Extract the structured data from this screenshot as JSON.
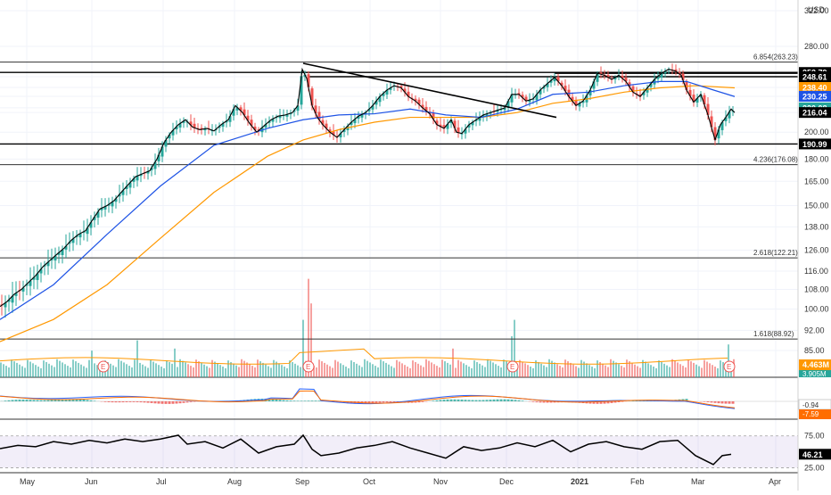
{
  "chart_data": {
    "type": "candlestick",
    "currency": "USD",
    "price_axis": {
      "scale": "log",
      "range": [
        86,
        325
      ],
      "ticks": [
        "322.00",
        "280.00",
        "252.79",
        "248.61",
        "238.40",
        "230.25",
        "220.08",
        "216.04",
        "200.00",
        "190.99",
        "180.00",
        "165.00",
        "150.00",
        "138.00",
        "126.00",
        "116.00",
        "108.00",
        "100.00",
        "92.00",
        "85.00"
      ],
      "tick_values": [
        322,
        280,
        252.79,
        248.61,
        238.4,
        230.25,
        220.08,
        216.04,
        200,
        190.99,
        180,
        165,
        150,
        138,
        126,
        116,
        108,
        100,
        92,
        85
      ],
      "tags": [
        {
          "label": "252.79",
          "value": 252.79,
          "bg": "#000000",
          "fg": "#ffffff"
        },
        {
          "label": "248.61",
          "value": 248.61,
          "bg": "#000000",
          "fg": "#ffffff"
        },
        {
          "label": "238.40",
          "value": 238.4,
          "bg": "#ff9800",
          "fg": "#ffffff"
        },
        {
          "label": "230.25",
          "value": 230.25,
          "bg": "#1e53e5",
          "fg": "#ffffff"
        },
        {
          "label": "220.08",
          "value": 220.08,
          "bg": "#26a69a",
          "fg": "#ffffff"
        },
        {
          "label": "216.04",
          "value": 216.04,
          "bg": "#000000",
          "fg": "#ffffff"
        },
        {
          "label": "190.99",
          "value": 190.99,
          "bg": "#000000",
          "fg": "#ffffff"
        }
      ]
    },
    "x_axis": {
      "labels": [
        "May",
        "Jun",
        "Jul",
        "Aug",
        "Sep",
        "Oct",
        "Nov",
        "Dec",
        "2021",
        "Feb",
        "Mar",
        "Apr"
      ],
      "positions": [
        30,
        103,
        183,
        263,
        339,
        415,
        494,
        568,
        648,
        715,
        783,
        870
      ]
    },
    "fib_levels": [
      {
        "label": "6.854(263.23)",
        "value": 263.23
      },
      {
        "label": "4.236(176.08)",
        "value": 176.08
      },
      {
        "label": "2.618(122.21)",
        "value": 122.21
      },
      {
        "label": "1.618(88.92)",
        "value": 88.92
      }
    ],
    "horizontal_levels": [
      252.79,
      190.99
    ],
    "resistance_segments": [
      {
        "x1": 345,
        "x2": 895,
        "value": 248.61
      },
      {
        "x1": 622,
        "x2": 895,
        "value": 252.0
      }
    ],
    "trendline": {
      "x1": 340,
      "y1": 262,
      "x2": 624,
      "y2": 212
    },
    "close_series": [
      {
        "x": 0,
        "y": 101
      },
      {
        "x": 8,
        "y": 103
      },
      {
        "x": 16,
        "y": 106
      },
      {
        "x": 24,
        "y": 108
      },
      {
        "x": 32,
        "y": 111
      },
      {
        "x": 40,
        "y": 114
      },
      {
        "x": 48,
        "y": 118
      },
      {
        "x": 56,
        "y": 121
      },
      {
        "x": 64,
        "y": 124
      },
      {
        "x": 72,
        "y": 127
      },
      {
        "x": 80,
        "y": 131
      },
      {
        "x": 88,
        "y": 134
      },
      {
        "x": 96,
        "y": 136
      },
      {
        "x": 104,
        "y": 142
      },
      {
        "x": 112,
        "y": 148
      },
      {
        "x": 120,
        "y": 150
      },
      {
        "x": 128,
        "y": 153
      },
      {
        "x": 136,
        "y": 158
      },
      {
        "x": 144,
        "y": 163
      },
      {
        "x": 152,
        "y": 168
      },
      {
        "x": 160,
        "y": 170
      },
      {
        "x": 168,
        "y": 172
      },
      {
        "x": 176,
        "y": 180
      },
      {
        "x": 184,
        "y": 192
      },
      {
        "x": 192,
        "y": 200
      },
      {
        "x": 200,
        "y": 206
      },
      {
        "x": 208,
        "y": 210
      },
      {
        "x": 216,
        "y": 204
      },
      {
        "x": 224,
        "y": 202
      },
      {
        "x": 232,
        "y": 203
      },
      {
        "x": 240,
        "y": 201
      },
      {
        "x": 248,
        "y": 206
      },
      {
        "x": 256,
        "y": 210
      },
      {
        "x": 264,
        "y": 222
      },
      {
        "x": 272,
        "y": 216
      },
      {
        "x": 280,
        "y": 207
      },
      {
        "x": 288,
        "y": 200
      },
      {
        "x": 296,
        "y": 205
      },
      {
        "x": 304,
        "y": 210
      },
      {
        "x": 312,
        "y": 213
      },
      {
        "x": 320,
        "y": 214
      },
      {
        "x": 328,
        "y": 216
      },
      {
        "x": 334,
        "y": 222
      },
      {
        "x": 339,
        "y": 256
      },
      {
        "x": 344,
        "y": 247
      },
      {
        "x": 350,
        "y": 222
      },
      {
        "x": 356,
        "y": 212
      },
      {
        "x": 362,
        "y": 206
      },
      {
        "x": 370,
        "y": 200
      },
      {
        "x": 378,
        "y": 196
      },
      {
        "x": 386,
        "y": 202
      },
      {
        "x": 394,
        "y": 208
      },
      {
        "x": 402,
        "y": 213
      },
      {
        "x": 410,
        "y": 216
      },
      {
        "x": 418,
        "y": 222
      },
      {
        "x": 426,
        "y": 230
      },
      {
        "x": 434,
        "y": 236
      },
      {
        "x": 442,
        "y": 240
      },
      {
        "x": 450,
        "y": 238
      },
      {
        "x": 458,
        "y": 230
      },
      {
        "x": 466,
        "y": 226
      },
      {
        "x": 474,
        "y": 220
      },
      {
        "x": 482,
        "y": 215
      },
      {
        "x": 490,
        "y": 206
      },
      {
        "x": 498,
        "y": 203
      },
      {
        "x": 506,
        "y": 210
      },
      {
        "x": 512,
        "y": 200
      },
      {
        "x": 518,
        "y": 199
      },
      {
        "x": 526,
        "y": 206
      },
      {
        "x": 534,
        "y": 210
      },
      {
        "x": 542,
        "y": 214
      },
      {
        "x": 550,
        "y": 216
      },
      {
        "x": 558,
        "y": 218
      },
      {
        "x": 566,
        "y": 220
      },
      {
        "x": 574,
        "y": 232
      },
      {
        "x": 582,
        "y": 232
      },
      {
        "x": 590,
        "y": 226
      },
      {
        "x": 598,
        "y": 228
      },
      {
        "x": 606,
        "y": 236
      },
      {
        "x": 614,
        "y": 242
      },
      {
        "x": 622,
        "y": 248
      },
      {
        "x": 630,
        "y": 240
      },
      {
        "x": 638,
        "y": 230
      },
      {
        "x": 646,
        "y": 222
      },
      {
        "x": 654,
        "y": 226
      },
      {
        "x": 662,
        "y": 236
      },
      {
        "x": 670,
        "y": 252
      },
      {
        "x": 678,
        "y": 250
      },
      {
        "x": 686,
        "y": 246
      },
      {
        "x": 694,
        "y": 250
      },
      {
        "x": 702,
        "y": 244
      },
      {
        "x": 710,
        "y": 234
      },
      {
        "x": 718,
        "y": 230
      },
      {
        "x": 726,
        "y": 238
      },
      {
        "x": 734,
        "y": 246
      },
      {
        "x": 742,
        "y": 252
      },
      {
        "x": 750,
        "y": 256
      },
      {
        "x": 758,
        "y": 254
      },
      {
        "x": 764,
        "y": 250
      },
      {
        "x": 770,
        "y": 236
      },
      {
        "x": 778,
        "y": 225
      },
      {
        "x": 786,
        "y": 232
      },
      {
        "x": 794,
        "y": 214
      },
      {
        "x": 802,
        "y": 194
      },
      {
        "x": 808,
        "y": 206
      },
      {
        "x": 814,
        "y": 212
      },
      {
        "x": 820,
        "y": 219
      },
      {
        "x": 824,
        "y": 216
      }
    ],
    "ema_fast": {
      "name": "",
      "color": "#1e53e5",
      "points": [
        {
          "x": 0,
          "y": 96
        },
        {
          "x": 60,
          "y": 110
        },
        {
          "x": 120,
          "y": 134
        },
        {
          "x": 180,
          "y": 162
        },
        {
          "x": 240,
          "y": 190
        },
        {
          "x": 300,
          "y": 203
        },
        {
          "x": 340,
          "y": 210
        },
        {
          "x": 380,
          "y": 214
        },
        {
          "x": 420,
          "y": 215
        },
        {
          "x": 460,
          "y": 219
        },
        {
          "x": 500,
          "y": 214
        },
        {
          "x": 540,
          "y": 212
        },
        {
          "x": 580,
          "y": 219
        },
        {
          "x": 620,
          "y": 232
        },
        {
          "x": 660,
          "y": 234
        },
        {
          "x": 700,
          "y": 240
        },
        {
          "x": 740,
          "y": 244
        },
        {
          "x": 770,
          "y": 244
        },
        {
          "x": 800,
          "y": 236
        },
        {
          "x": 824,
          "y": 230
        }
      ]
    },
    "ema_slow": {
      "name": "",
      "color": "#ff9800",
      "points": [
        {
          "x": 0,
          "y": 88
        },
        {
          "x": 60,
          "y": 96
        },
        {
          "x": 120,
          "y": 110
        },
        {
          "x": 180,
          "y": 132
        },
        {
          "x": 240,
          "y": 158
        },
        {
          "x": 300,
          "y": 182
        },
        {
          "x": 340,
          "y": 194
        },
        {
          "x": 380,
          "y": 202
        },
        {
          "x": 420,
          "y": 208
        },
        {
          "x": 460,
          "y": 212
        },
        {
          "x": 500,
          "y": 212
        },
        {
          "x": 540,
          "y": 212
        },
        {
          "x": 580,
          "y": 216
        },
        {
          "x": 620,
          "y": 224
        },
        {
          "x": 660,
          "y": 228
        },
        {
          "x": 700,
          "y": 234
        },
        {
          "x": 740,
          "y": 238
        },
        {
          "x": 780,
          "y": 240
        },
        {
          "x": 824,
          "y": 238
        }
      ]
    },
    "volume": {
      "labels": [
        "4.463M",
        "3.905M"
      ],
      "earnings_markers": [
        {
          "x": 116,
          "label": "E"
        },
        {
          "x": 346,
          "label": "E"
        },
        {
          "x": 575,
          "label": "E"
        },
        {
          "x": 818,
          "label": "E"
        }
      ],
      "spikes": [
        {
          "x": 103,
          "m": 6.5
        },
        {
          "x": 153,
          "m": 9
        },
        {
          "x": 197,
          "m": 7
        },
        {
          "x": 340,
          "m": 14
        },
        {
          "x": 345,
          "m": 24
        },
        {
          "x": 350,
          "m": 18
        },
        {
          "x": 508,
          "m": 7
        },
        {
          "x": 573,
          "m": 10
        },
        {
          "x": 578,
          "m": 14
        },
        {
          "x": 818,
          "m": 8
        }
      ]
    },
    "macd": {
      "labels": [
        "-0.94",
        "-7.59"
      ]
    },
    "rsi": {
      "value_label": "46.21",
      "ticks": [
        "75.00",
        "25.00"
      ],
      "points": [
        {
          "x": 0,
          "y": 55
        },
        {
          "x": 20,
          "y": 60
        },
        {
          "x": 40,
          "y": 58
        },
        {
          "x": 60,
          "y": 66
        },
        {
          "x": 80,
          "y": 62
        },
        {
          "x": 100,
          "y": 68
        },
        {
          "x": 120,
          "y": 64
        },
        {
          "x": 140,
          "y": 70
        },
        {
          "x": 160,
          "y": 66
        },
        {
          "x": 180,
          "y": 70
        },
        {
          "x": 200,
          "y": 76
        },
        {
          "x": 210,
          "y": 62
        },
        {
          "x": 230,
          "y": 66
        },
        {
          "x": 250,
          "y": 56
        },
        {
          "x": 270,
          "y": 70
        },
        {
          "x": 290,
          "y": 48
        },
        {
          "x": 310,
          "y": 58
        },
        {
          "x": 330,
          "y": 62
        },
        {
          "x": 340,
          "y": 76
        },
        {
          "x": 350,
          "y": 54
        },
        {
          "x": 360,
          "y": 44
        },
        {
          "x": 380,
          "y": 48
        },
        {
          "x": 400,
          "y": 56
        },
        {
          "x": 420,
          "y": 60
        },
        {
          "x": 440,
          "y": 66
        },
        {
          "x": 460,
          "y": 56
        },
        {
          "x": 480,
          "y": 48
        },
        {
          "x": 500,
          "y": 40
        },
        {
          "x": 520,
          "y": 58
        },
        {
          "x": 540,
          "y": 52
        },
        {
          "x": 560,
          "y": 56
        },
        {
          "x": 580,
          "y": 64
        },
        {
          "x": 600,
          "y": 58
        },
        {
          "x": 620,
          "y": 68
        },
        {
          "x": 640,
          "y": 50
        },
        {
          "x": 660,
          "y": 62
        },
        {
          "x": 680,
          "y": 66
        },
        {
          "x": 700,
          "y": 58
        },
        {
          "x": 720,
          "y": 54
        },
        {
          "x": 740,
          "y": 66
        },
        {
          "x": 760,
          "y": 68
        },
        {
          "x": 780,
          "y": 44
        },
        {
          "x": 800,
          "y": 30
        },
        {
          "x": 810,
          "y": 44
        },
        {
          "x": 820,
          "y": 46
        }
      ]
    }
  }
}
